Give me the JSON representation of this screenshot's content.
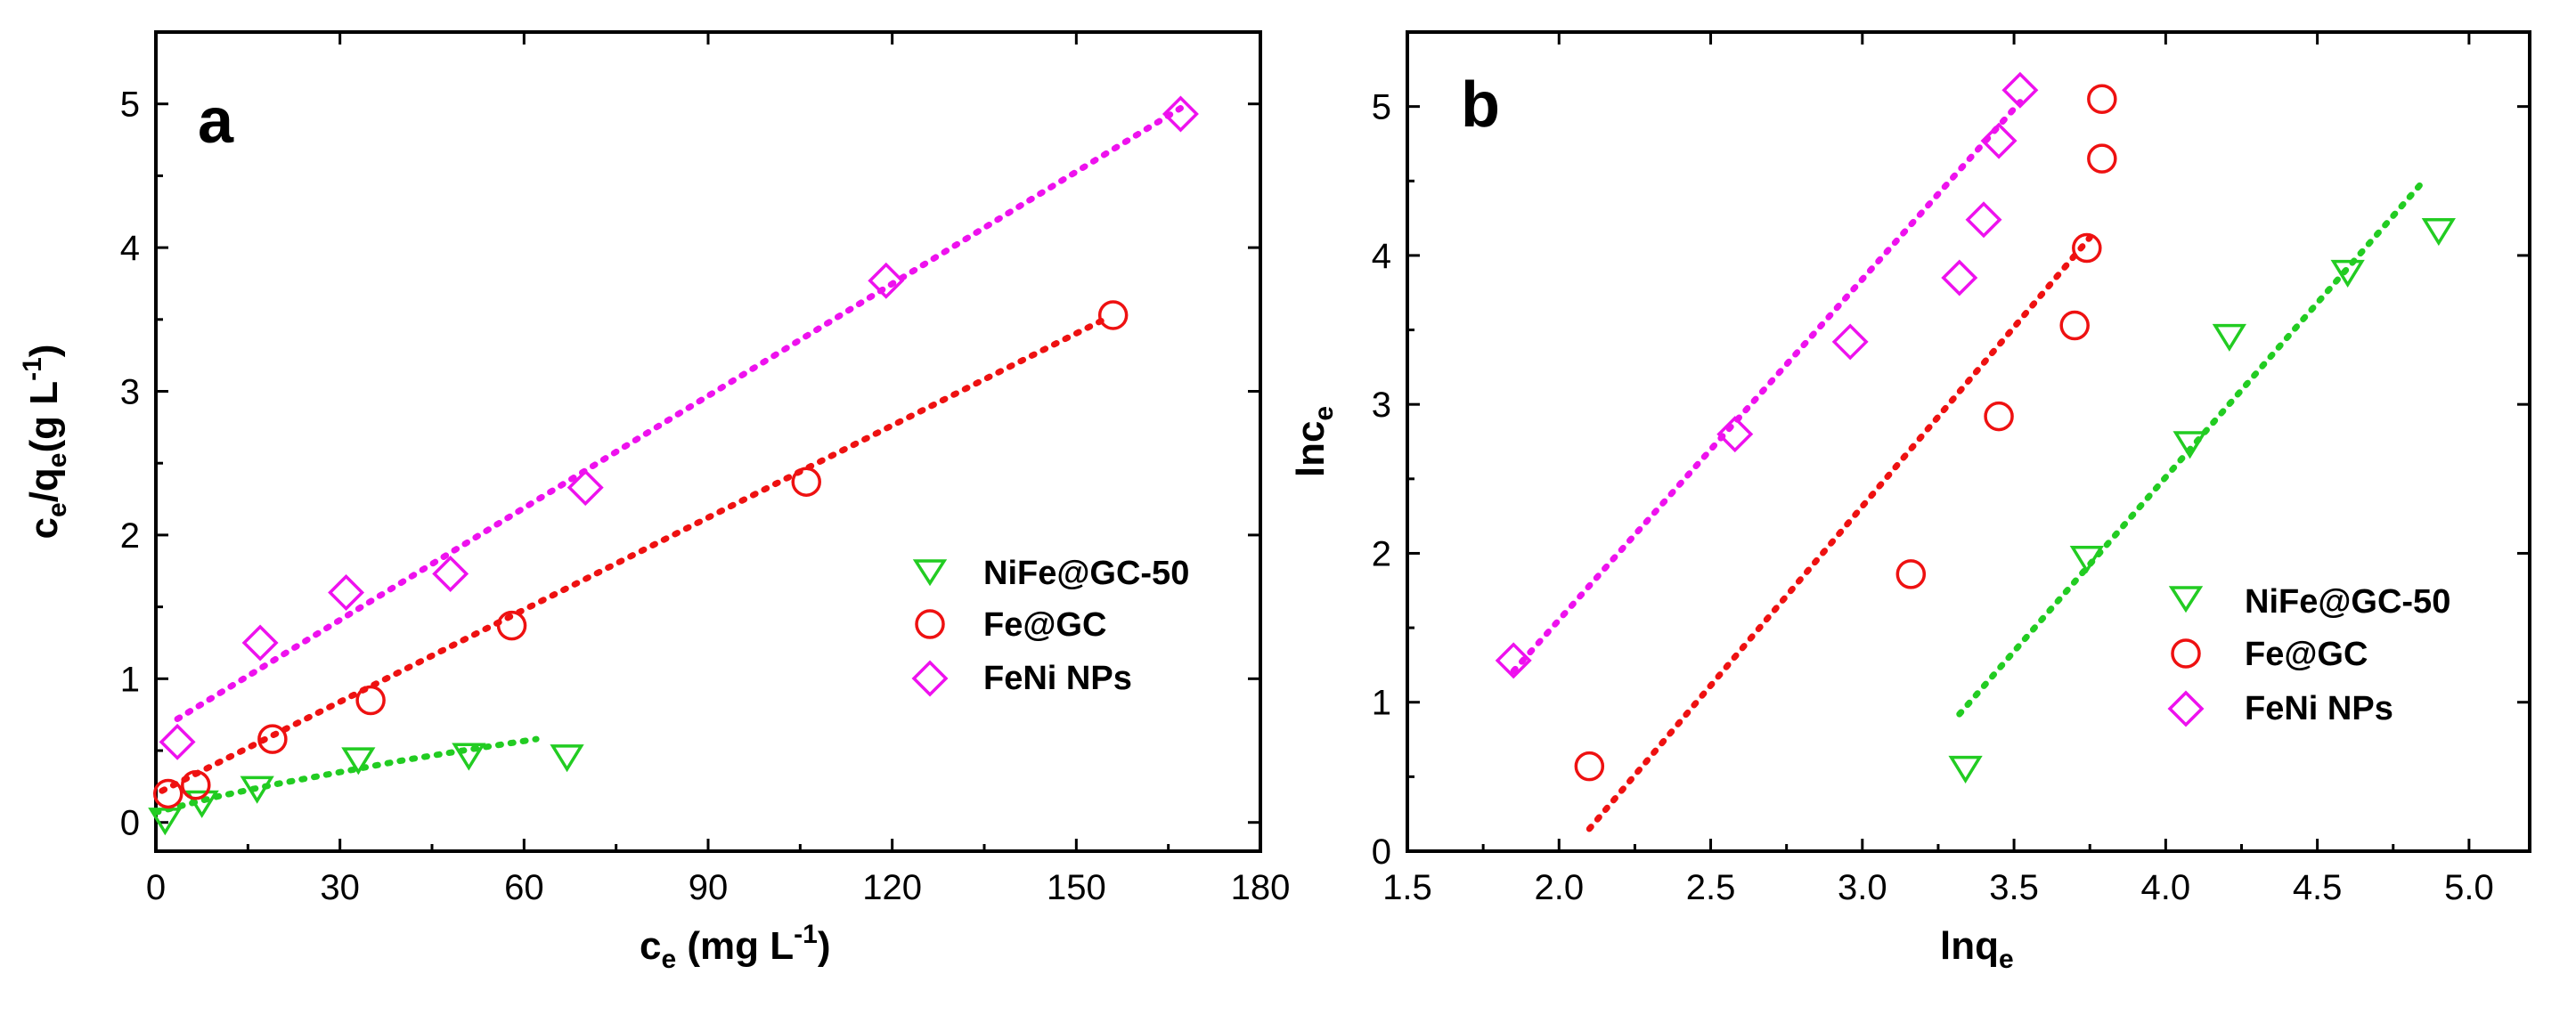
{
  "colors": {
    "green": "#22cc22",
    "red": "#ee1111",
    "magenta": "#ee11ee",
    "green_fit": "#22cc22",
    "red_fit": "#ee1111",
    "magenta_fit": "#ee11ee"
  },
  "chart_data": [
    {
      "type": "scatter",
      "panel_label": "a",
      "xlabel": {
        "main": "c",
        "sub": "e",
        "rest": " (mg L",
        "sup": "-1",
        "close": ")"
      },
      "ylabel": {
        "c": "c",
        "sub1": "e",
        "slash": "/q",
        "sub2": "e",
        "rest": "(g L",
        "sup": "-1",
        "close": ")"
      },
      "xlim": [
        0,
        180
      ],
      "ylim": [
        -0.2,
        5.5
      ],
      "xticks": [
        0,
        30,
        60,
        90,
        120,
        150,
        180
      ],
      "yticks": [
        0,
        1,
        2,
        3,
        4,
        5
      ],
      "xtick_labels": [
        "0",
        "30",
        "60",
        "90",
        "120",
        "150",
        "180"
      ],
      "ytick_labels": [
        "0",
        "1",
        "2",
        "3",
        "4",
        "5"
      ],
      "legend_position": "center-right",
      "series": [
        {
          "name": "NiFe@GC-50",
          "marker": "triangle-down",
          "color_key": "green",
          "x": [
            1.5,
            7.5,
            16.5,
            33,
            51,
            67
          ],
          "y": [
            0.03,
            0.15,
            0.25,
            0.45,
            0.48,
            0.47
          ],
          "fit": {
            "kind": "curve",
            "x": [
              0,
              10,
              20,
              30,
              40,
              50,
              62
            ],
            "y": [
              0.07,
              0.18,
              0.27,
              0.35,
              0.43,
              0.5,
              0.58
            ]
          }
        },
        {
          "name": "Fe@GC",
          "marker": "circle",
          "color_key": "red",
          "x": [
            2,
            6.5,
            19,
            35,
            58,
            106,
            156
          ],
          "y": [
            0.2,
            0.26,
            0.58,
            0.85,
            1.37,
            2.37,
            3.53
          ],
          "fit": {
            "kind": "line",
            "x": [
              1,
              155
            ],
            "y": [
              0.22,
              3.51
            ]
          }
        },
        {
          "name": "FeNi NPs",
          "marker": "diamond",
          "color_key": "magenta",
          "x": [
            3.5,
            17,
            31,
            48,
            70,
            119,
            167
          ],
          "y": [
            0.56,
            1.25,
            1.6,
            1.73,
            2.33,
            3.77,
            4.93
          ],
          "fit": {
            "kind": "line",
            "x": [
              3.5,
              167
            ],
            "y": [
              0.72,
              4.97
            ]
          }
        }
      ]
    },
    {
      "type": "scatter",
      "panel_label": "b",
      "xlabel": {
        "main": "lnq",
        "sub": "e"
      },
      "ylabel": {
        "main": "lnc",
        "sub": "e"
      },
      "xlim": [
        1.5,
        5.2
      ],
      "ylim": [
        0,
        5.5
      ],
      "xticks": [
        1.5,
        2.0,
        2.5,
        3.0,
        3.5,
        4.0,
        4.5,
        5.0
      ],
      "yticks": [
        0,
        1,
        2,
        3,
        4,
        5
      ],
      "xtick_labels": [
        "1.5",
        "2.0",
        "2.5",
        "3.0",
        "3.5",
        "4.0",
        "4.5",
        "5.0"
      ],
      "ytick_labels": [
        "0",
        "1",
        "2",
        "3",
        "4",
        "5"
      ],
      "legend_position": "bottom-right",
      "series": [
        {
          "name": "NiFe@GC-50",
          "marker": "triangle-down",
          "color_key": "green",
          "x": [
            3.34,
            3.74,
            4.08,
            4.21,
            4.6,
            4.9
          ],
          "y": [
            0.57,
            1.98,
            2.75,
            3.47,
            3.9,
            4.18
          ],
          "fit": {
            "kind": "line",
            "x": [
              3.32,
              4.85
            ],
            "y": [
              0.92,
              4.5
            ]
          }
        },
        {
          "name": "Fe@GC",
          "marker": "circle",
          "color_key": "red",
          "x": [
            2.1,
            3.16,
            3.45,
            3.7,
            3.74,
            3.79,
            3.79
          ],
          "y": [
            0.57,
            1.86,
            2.92,
            3.53,
            4.05,
            4.65,
            5.05
          ],
          "fit": {
            "kind": "line",
            "x": [
              2.1,
              3.75
            ],
            "y": [
              0.15,
              4.12
            ]
          }
        },
        {
          "name": "FeNi NPs",
          "marker": "diamond",
          "color_key": "magenta",
          "x": [
            1.85,
            2.58,
            2.96,
            3.32,
            3.4,
            3.45,
            3.52
          ],
          "y": [
            1.28,
            2.8,
            3.42,
            3.85,
            4.24,
            4.77,
            5.11
          ],
          "fit": {
            "kind": "line",
            "x": [
              1.85,
              3.52
            ],
            "y": [
              1.21,
              5.03
            ]
          }
        }
      ]
    }
  ]
}
